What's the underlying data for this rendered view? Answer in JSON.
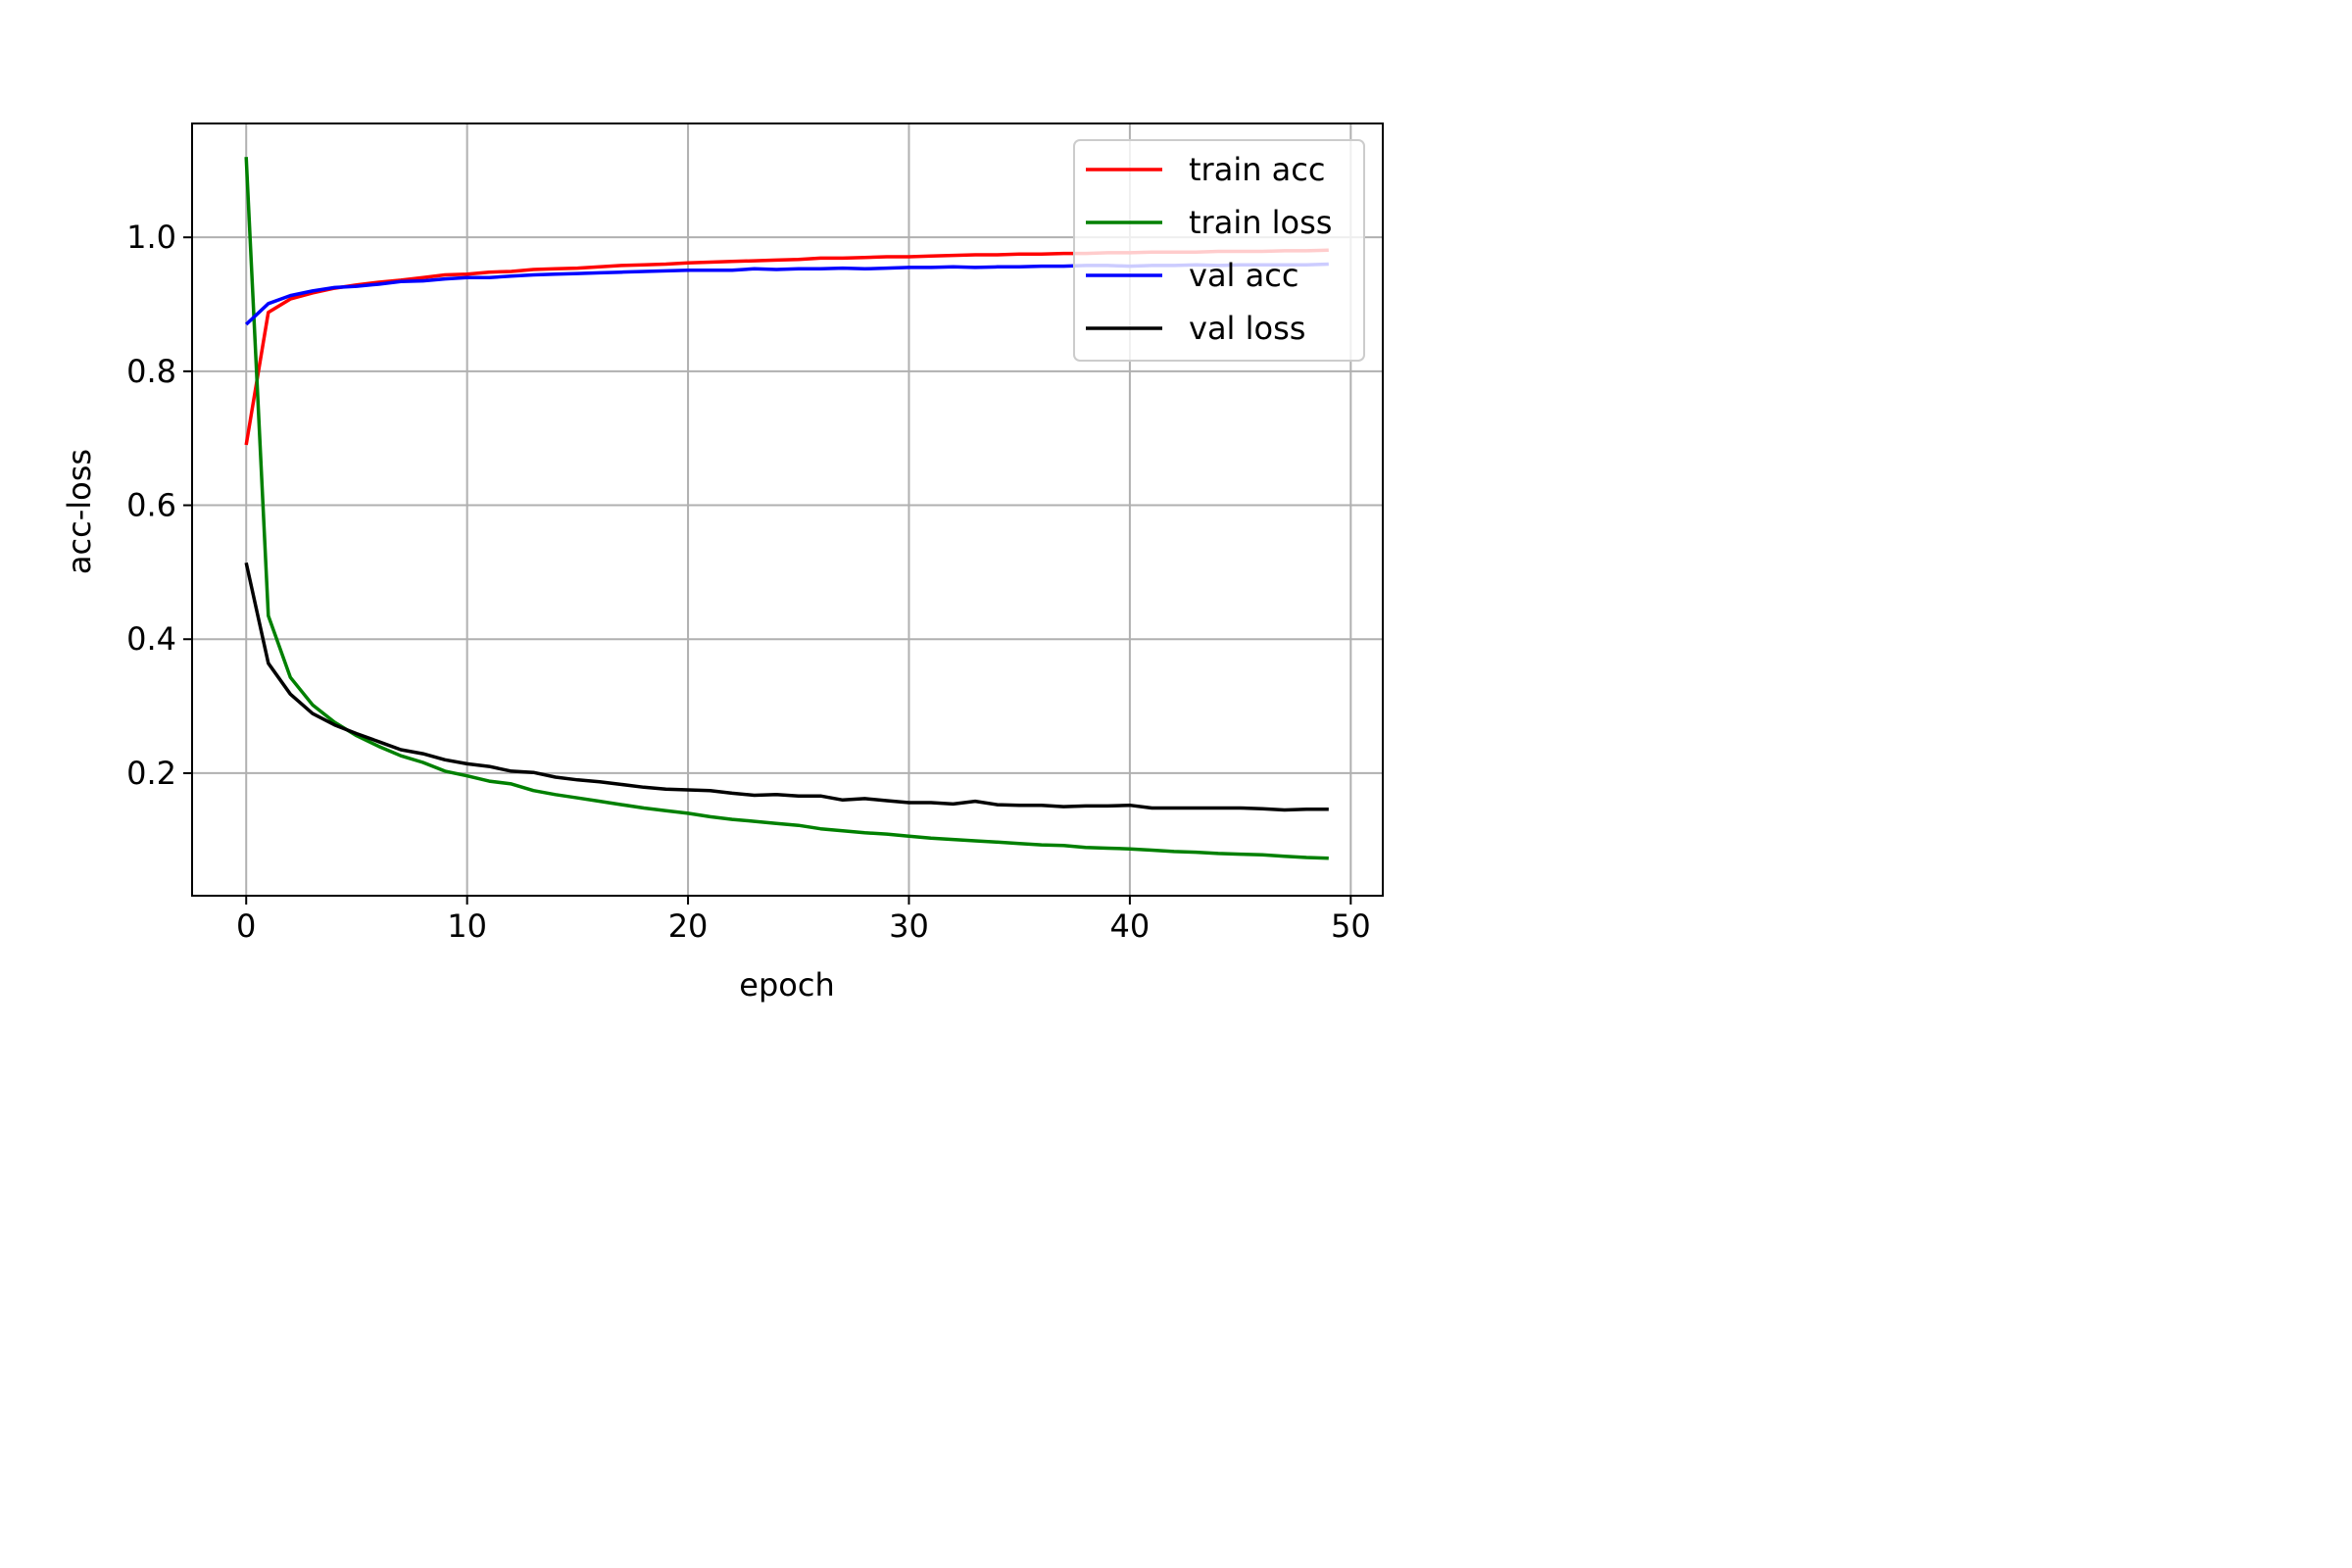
{
  "chart_data": {
    "type": "line",
    "title": "",
    "xlabel": "epoch",
    "ylabel": "acc-loss",
    "xlim": [
      -2.45,
      51.45
    ],
    "ylim": [
      0.017,
      1.17
    ],
    "xticks": [
      0,
      10,
      20,
      30,
      40,
      50
    ],
    "xtick_labels": [
      "0",
      "10",
      "20",
      "30",
      "40",
      "50"
    ],
    "yticks": [
      0.2,
      0.4,
      0.6,
      0.8,
      1.0
    ],
    "ytick_labels": [
      "0.2",
      "0.4",
      "0.6",
      "0.8",
      "1.0"
    ],
    "grid": true,
    "legend_position": "top-right",
    "x": [
      0,
      1,
      2,
      3,
      4,
      5,
      6,
      7,
      8,
      9,
      10,
      11,
      12,
      13,
      14,
      15,
      16,
      17,
      18,
      19,
      20,
      21,
      22,
      23,
      24,
      25,
      26,
      27,
      28,
      29,
      30,
      31,
      32,
      33,
      34,
      35,
      36,
      37,
      38,
      39,
      40,
      41,
      42,
      43,
      44,
      45,
      46,
      47,
      48,
      49
    ],
    "series": [
      {
        "name": "train acc",
        "color": "#ff0000",
        "values": [
          0.69,
          0.888,
          0.908,
          0.917,
          0.924,
          0.929,
          0.933,
          0.936,
          0.94,
          0.944,
          0.945,
          0.948,
          0.949,
          0.952,
          0.953,
          0.954,
          0.956,
          0.958,
          0.959,
          0.96,
          0.962,
          0.963,
          0.964,
          0.965,
          0.966,
          0.967,
          0.969,
          0.969,
          0.97,
          0.971,
          0.971,
          0.972,
          0.973,
          0.974,
          0.974,
          0.975,
          0.975,
          0.976,
          0.976,
          0.977,
          0.977,
          0.978,
          0.978,
          0.978,
          0.979,
          0.979,
          0.979,
          0.98,
          0.98,
          0.981
        ]
      },
      {
        "name": "train loss",
        "color": "#008000",
        "values": [
          1.12,
          0.435,
          0.343,
          0.302,
          0.276,
          0.256,
          0.24,
          0.226,
          0.216,
          0.203,
          0.196,
          0.188,
          0.184,
          0.174,
          0.168,
          0.163,
          0.158,
          0.153,
          0.148,
          0.144,
          0.14,
          0.135,
          0.131,
          0.128,
          0.125,
          0.122,
          0.117,
          0.114,
          0.111,
          0.109,
          0.106,
          0.103,
          0.101,
          0.099,
          0.097,
          0.095,
          0.093,
          0.092,
          0.089,
          0.088,
          0.087,
          0.085,
          0.083,
          0.082,
          0.08,
          0.079,
          0.078,
          0.076,
          0.074,
          0.073
        ]
      },
      {
        "name": "val acc",
        "color": "#0000ff",
        "values": [
          0.87,
          0.901,
          0.913,
          0.92,
          0.925,
          0.927,
          0.93,
          0.934,
          0.935,
          0.938,
          0.94,
          0.94,
          0.942,
          0.944,
          0.945,
          0.946,
          0.947,
          0.948,
          0.949,
          0.95,
          0.951,
          0.951,
          0.951,
          0.953,
          0.952,
          0.953,
          0.953,
          0.954,
          0.953,
          0.954,
          0.955,
          0.955,
          0.956,
          0.955,
          0.956,
          0.956,
          0.957,
          0.957,
          0.958,
          0.958,
          0.957,
          0.958,
          0.958,
          0.959,
          0.958,
          0.959,
          0.959,
          0.959,
          0.959,
          0.96
        ]
      },
      {
        "name": "val loss",
        "color": "#000000",
        "values": [
          0.514,
          0.364,
          0.318,
          0.289,
          0.272,
          0.259,
          0.247,
          0.235,
          0.229,
          0.22,
          0.214,
          0.21,
          0.203,
          0.201,
          0.194,
          0.19,
          0.187,
          0.183,
          0.179,
          0.176,
          0.175,
          0.174,
          0.17,
          0.167,
          0.168,
          0.166,
          0.166,
          0.16,
          0.162,
          0.159,
          0.156,
          0.156,
          0.154,
          0.158,
          0.153,
          0.152,
          0.152,
          0.15,
          0.151,
          0.151,
          0.152,
          0.148,
          0.148,
          0.148,
          0.148,
          0.148,
          0.147,
          0.145,
          0.146,
          0.146
        ]
      }
    ]
  }
}
